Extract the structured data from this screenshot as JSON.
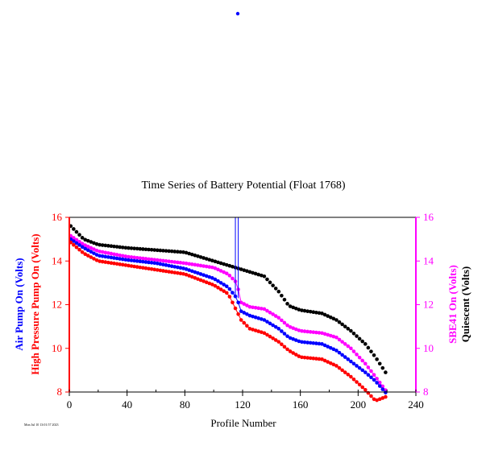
{
  "chart_data": {
    "type": "scatter",
    "title": "Time Series of Battery Potential (Float 1768)",
    "xlabel": "Profile Number",
    "xlim": [
      0,
      240
    ],
    "ylim": [
      8,
      16
    ],
    "x_ticks": [
      "0",
      "40",
      "80",
      "120",
      "160",
      "200",
      "240"
    ],
    "y_ticks": [
      "8",
      "10",
      "12",
      "14",
      "16"
    ],
    "left_axis_labels": [
      {
        "text": "Air Pump On (Volts)",
        "color": "#0000ff"
      },
      {
        "text": "High Pressure Pump On (Volts)",
        "color": "#ff0000"
      }
    ],
    "right_axis_labels": [
      {
        "text": "SBE41 On (Volts)",
        "color": "#ff00ff"
      },
      {
        "text": "Quiescent (Volts)",
        "color": "#000000"
      }
    ],
    "left_axis_color": "#ff0000",
    "right_axis_color": "#ff00ff",
    "footnote": "Mon Jul 10 13:01:57 2023",
    "stray_point_color": "#0000ff",
    "series": [
      {
        "name": "Quiescent",
        "color": "#000000",
        "values": [
          [
            1,
            15.6
          ],
          [
            10,
            15.0
          ],
          [
            20,
            14.75
          ],
          [
            40,
            14.6
          ],
          [
            60,
            14.5
          ],
          [
            80,
            14.4
          ],
          [
            100,
            14.0
          ],
          [
            120,
            13.6
          ],
          [
            135,
            13.3
          ],
          [
            145,
            12.6
          ],
          [
            152,
            11.95
          ],
          [
            160,
            11.75
          ],
          [
            175,
            11.6
          ],
          [
            185,
            11.3
          ],
          [
            195,
            10.8
          ],
          [
            205,
            10.2
          ],
          [
            212,
            9.6
          ],
          [
            220,
            8.8
          ]
        ]
      },
      {
        "name": "SBE41 On",
        "color": "#ff00ff",
        "values": [
          [
            1,
            15.15
          ],
          [
            10,
            14.75
          ],
          [
            20,
            14.45
          ],
          [
            40,
            14.2
          ],
          [
            60,
            14.05
          ],
          [
            80,
            13.9
          ],
          [
            100,
            13.7
          ],
          [
            110,
            13.4
          ],
          [
            116,
            13.0
          ],
          [
            119,
            12.1
          ],
          [
            125,
            11.9
          ],
          [
            135,
            11.8
          ],
          [
            145,
            11.4
          ],
          [
            152,
            11.0
          ],
          [
            160,
            10.8
          ],
          [
            175,
            10.7
          ],
          [
            185,
            10.5
          ],
          [
            195,
            10.0
          ],
          [
            205,
            9.3
          ],
          [
            212,
            8.7
          ],
          [
            220,
            8.0
          ]
        ]
      },
      {
        "name": "Air Pump On",
        "color": "#0000ff",
        "values": [
          [
            1,
            15.0
          ],
          [
            10,
            14.6
          ],
          [
            20,
            14.25
          ],
          [
            40,
            14.05
          ],
          [
            60,
            13.9
          ],
          [
            80,
            13.65
          ],
          [
            100,
            13.2
          ],
          [
            110,
            12.8
          ],
          [
            116,
            12.3
          ],
          [
            119,
            11.7
          ],
          [
            125,
            11.5
          ],
          [
            135,
            11.3
          ],
          [
            145,
            10.9
          ],
          [
            152,
            10.5
          ],
          [
            160,
            10.3
          ],
          [
            175,
            10.2
          ],
          [
            185,
            9.9
          ],
          [
            195,
            9.4
          ],
          [
            205,
            8.9
          ],
          [
            212,
            8.5
          ],
          [
            220,
            7.9
          ]
        ]
      },
      {
        "name": "High Pressure Pump On",
        "color": "#ff0000",
        "values": [
          [
            1,
            14.85
          ],
          [
            10,
            14.35
          ],
          [
            20,
            14.0
          ],
          [
            40,
            13.8
          ],
          [
            60,
            13.6
          ],
          [
            80,
            13.4
          ],
          [
            100,
            12.9
          ],
          [
            110,
            12.5
          ],
          [
            116,
            11.7
          ],
          [
            119,
            11.3
          ],
          [
            125,
            10.9
          ],
          [
            135,
            10.7
          ],
          [
            145,
            10.3
          ],
          [
            152,
            9.9
          ],
          [
            160,
            9.6
          ],
          [
            175,
            9.5
          ],
          [
            185,
            9.2
          ],
          [
            195,
            8.7
          ],
          [
            205,
            8.1
          ],
          [
            212,
            7.6
          ],
          [
            220,
            7.8
          ]
        ]
      }
    ]
  }
}
